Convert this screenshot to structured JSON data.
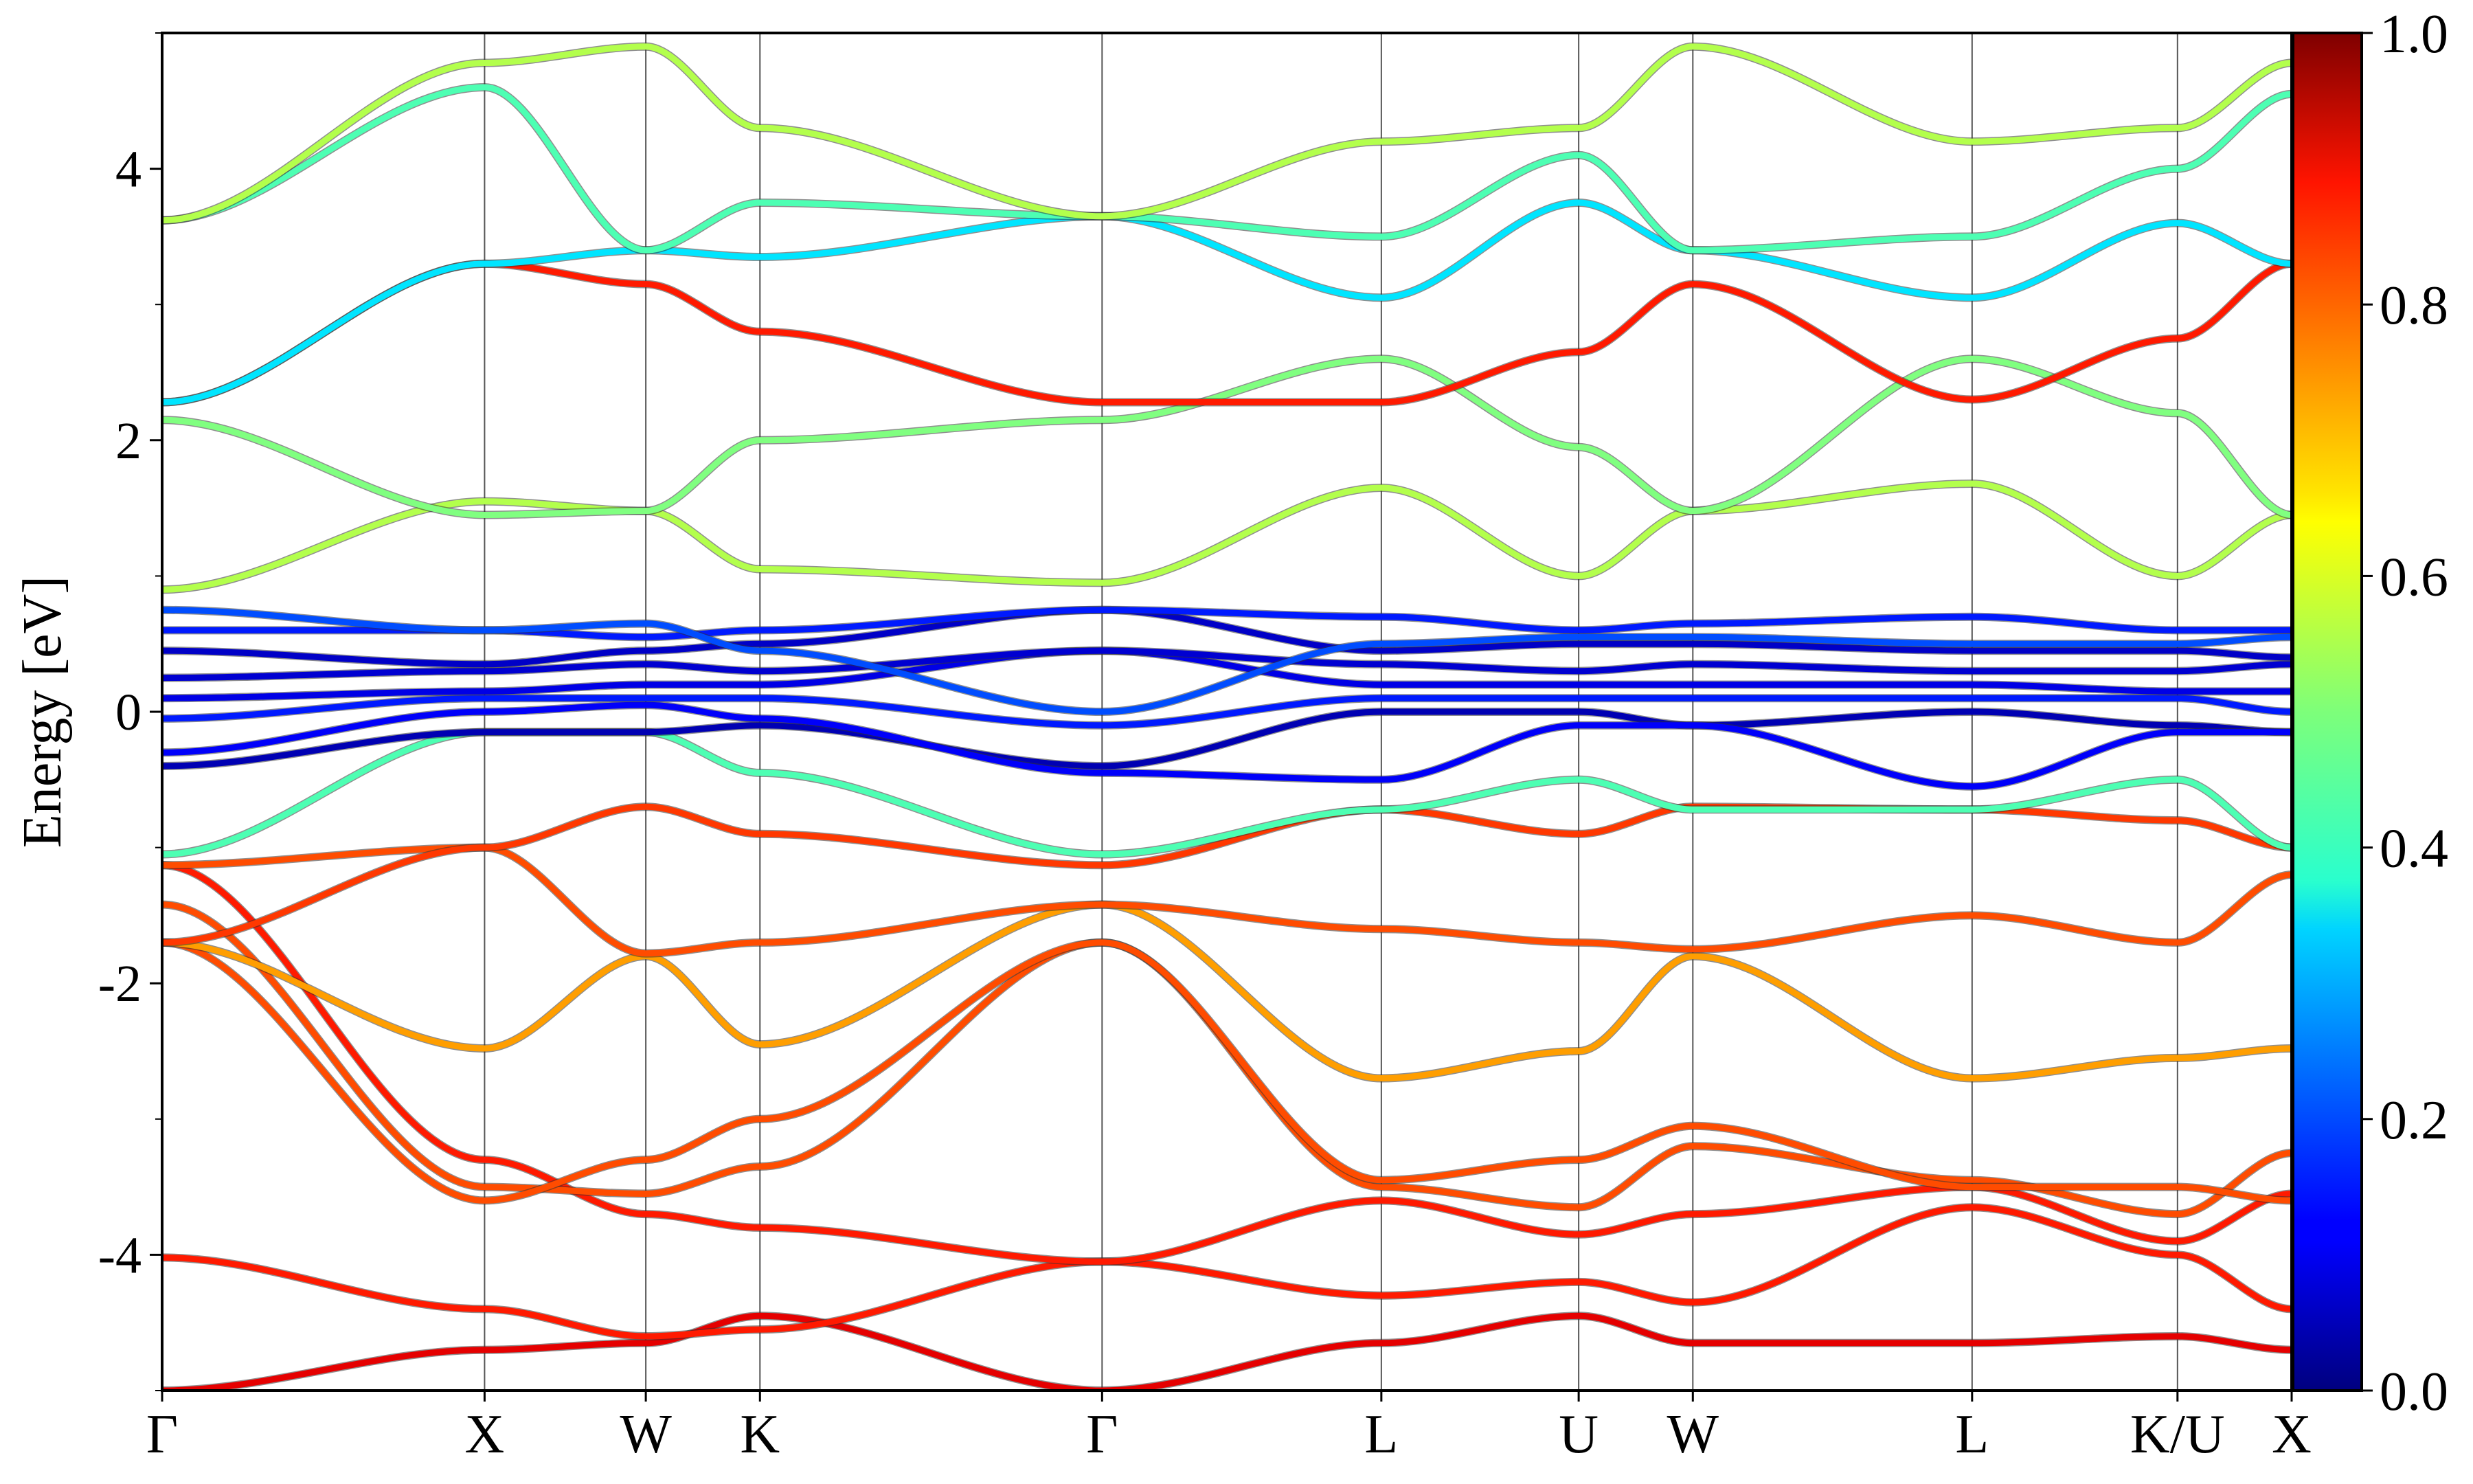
{
  "chart_data": {
    "type": "line",
    "subtype": "electronic band structure with projection-weight coloring",
    "title": "",
    "xlabel": "",
    "ylabel": "Energy [eV]",
    "ylim": [
      -5,
      5
    ],
    "yticks": [
      -4,
      -2,
      0,
      2,
      4
    ],
    "y_minor_ticks": [
      -5,
      -3,
      -1,
      1,
      3,
      5
    ],
    "kpath_labels": [
      "Γ",
      "X",
      "W",
      "K",
      "Γ",
      "L",
      "U",
      "W",
      "L",
      "K/U",
      "X"
    ],
    "kpath_positions": [
      0.0,
      1.0,
      1.5,
      1.854,
      2.915,
      3.781,
      4.393,
      4.747,
      5.613,
      6.25,
      6.604
    ],
    "grid": "vertical lines at high-symmetry points",
    "colorbar": {
      "colormap": "jet",
      "min": 0.0,
      "max": 1.0,
      "ticks": [
        "0.0",
        "0.2",
        "0.4",
        "0.6",
        "0.8",
        "1.0"
      ],
      "placement": "right"
    },
    "band_groups": [
      {
        "name": "",
        "energy_range": [
          -5.0,
          -1.1
        ],
        "typical_weight": 0.82
      },
      {
        "name": "",
        "energy_range": [
          -0.8,
          0.8
        ],
        "typical_weight": 0.12
      },
      {
        "name": "",
        "energy_range": [
          0.9,
          5.0
        ],
        "typical_weight": 0.45
      }
    ],
    "series": [
      {
        "x": [
          0.0,
          1.0,
          1.5,
          1.854,
          2.915,
          3.781,
          4.393,
          4.747,
          5.613,
          6.25,
          6.604
        ],
        "y": [
          -5.0,
          -4.7,
          -4.65,
          -4.45,
          -5.0,
          -4.65,
          -4.45,
          -4.65,
          -4.65,
          -4.6,
          -4.7
        ],
        "weight": 0.9
      },
      {
        "x": [
          0.0,
          1.0,
          1.5,
          1.854,
          2.915,
          3.781,
          4.393,
          4.747,
          5.613,
          6.25,
          6.604
        ],
        "y": [
          -4.02,
          -4.4,
          -4.6,
          -4.55,
          -4.05,
          -4.3,
          -4.2,
          -4.35,
          -3.65,
          -4.0,
          -4.4
        ],
        "weight": 0.85
      },
      {
        "x": [
          0.0,
          1.0,
          1.5,
          1.854,
          2.915,
          3.781,
          4.393,
          4.747,
          5.613,
          6.25,
          6.604
        ],
        "y": [
          -1.13,
          -3.3,
          -3.7,
          -3.8,
          -4.05,
          -3.6,
          -3.85,
          -3.7,
          -3.5,
          -3.9,
          -3.55
        ],
        "weight": 0.85
      },
      {
        "x": [
          0.0,
          1.0,
          1.5,
          1.854,
          2.915,
          3.781,
          4.393,
          4.747,
          5.613,
          6.25,
          6.604
        ],
        "y": [
          -1.42,
          -3.5,
          -3.55,
          -3.35,
          -1.7,
          -3.5,
          -3.65,
          -3.2,
          -3.45,
          -3.7,
          -3.25
        ],
        "weight": 0.8
      },
      {
        "x": [
          0.0,
          1.0,
          1.5,
          1.854,
          2.915,
          3.781,
          4.393,
          4.747,
          5.613,
          6.25,
          6.604
        ],
        "y": [
          -1.7,
          -3.6,
          -3.3,
          -3.0,
          -1.7,
          -3.45,
          -3.3,
          -3.05,
          -3.5,
          -3.5,
          -3.6
        ],
        "weight": 0.8
      },
      {
        "x": [
          0.0,
          1.0,
          1.5,
          1.854,
          2.915,
          3.781,
          4.393,
          4.747,
          5.613,
          6.25,
          6.604
        ],
        "y": [
          -1.7,
          -2.48,
          -1.8,
          -2.45,
          -1.42,
          -2.7,
          -2.5,
          -1.8,
          -2.7,
          -2.55,
          -2.48
        ],
        "weight": 0.72
      },
      {
        "x": [
          0.0,
          1.0,
          1.5,
          1.854,
          2.915,
          3.781,
          4.393,
          4.747,
          5.613,
          6.25,
          6.604
        ],
        "y": [
          -1.13,
          -1.0,
          -1.78,
          -1.7,
          -1.42,
          -1.6,
          -1.7,
          -1.75,
          -1.5,
          -1.7,
          -1.2
        ],
        "weight": 0.8
      },
      {
        "x": [
          0.0,
          1.0,
          1.5,
          1.854,
          2.915,
          3.781,
          4.393,
          4.747,
          5.613,
          6.25,
          6.604
        ],
        "y": [
          -1.7,
          -1.0,
          -0.7,
          -0.9,
          -1.13,
          -0.72,
          -0.9,
          -0.7,
          -0.72,
          -0.8,
          -1.0
        ],
        "weight": 0.82
      },
      {
        "x": [
          0.0,
          1.0,
          1.5,
          1.854,
          2.915,
          3.781,
          4.393,
          4.747,
          5.613,
          6.25,
          6.604
        ],
        "y": [
          -1.05,
          -0.15,
          -0.15,
          -0.45,
          -1.05,
          -0.72,
          -0.5,
          -0.72,
          -0.72,
          -0.5,
          -1.0
        ],
        "weight": 0.45
      },
      {
        "x": [
          0.0,
          1.0,
          1.5,
          1.854,
          2.915,
          3.781,
          4.393,
          4.747,
          5.613,
          6.25,
          6.604
        ],
        "y": [
          -0.4,
          -0.15,
          -0.15,
          -0.1,
          -0.4,
          0.0,
          0.0,
          -0.1,
          0.0,
          -0.1,
          -0.15
        ],
        "weight": 0.05
      },
      {
        "x": [
          0.0,
          1.0,
          1.5,
          1.854,
          2.915,
          3.781,
          4.393,
          4.747,
          5.613,
          6.25,
          6.604
        ],
        "y": [
          -0.3,
          0.0,
          0.05,
          -0.05,
          -0.45,
          -0.5,
          -0.1,
          -0.1,
          -0.55,
          -0.15,
          -0.15
        ],
        "weight": 0.12
      },
      {
        "x": [
          0.0,
          1.0,
          1.5,
          1.854,
          2.915,
          3.781,
          4.393,
          4.747,
          5.613,
          6.25,
          6.604
        ],
        "y": [
          -0.05,
          0.1,
          0.1,
          0.1,
          -0.1,
          0.1,
          0.1,
          0.1,
          0.1,
          0.1,
          0.0
        ],
        "weight": 0.15
      },
      {
        "x": [
          0.0,
          1.0,
          1.5,
          1.854,
          2.915,
          3.781,
          4.393,
          4.747,
          5.613,
          6.25,
          6.604
        ],
        "y": [
          0.1,
          0.15,
          0.2,
          0.2,
          0.45,
          0.2,
          0.2,
          0.2,
          0.2,
          0.15,
          0.15
        ],
        "weight": 0.1
      },
      {
        "x": [
          0.0,
          1.0,
          1.5,
          1.854,
          2.915,
          3.781,
          4.393,
          4.747,
          5.613,
          6.25,
          6.604
        ],
        "y": [
          0.25,
          0.3,
          0.35,
          0.3,
          0.45,
          0.35,
          0.3,
          0.35,
          0.3,
          0.3,
          0.35
        ],
        "weight": 0.08
      },
      {
        "x": [
          0.0,
          1.0,
          1.5,
          1.854,
          2.915,
          3.781,
          4.393,
          4.747,
          5.613,
          6.25,
          6.604
        ],
        "y": [
          0.45,
          0.35,
          0.45,
          0.5,
          0.75,
          0.45,
          0.5,
          0.5,
          0.45,
          0.45,
          0.4
        ],
        "weight": 0.07
      },
      {
        "x": [
          0.0,
          1.0,
          1.5,
          1.854,
          2.915,
          3.781,
          4.393,
          4.747,
          5.613,
          6.25,
          6.604
        ],
        "y": [
          0.6,
          0.6,
          0.55,
          0.6,
          0.75,
          0.7,
          0.6,
          0.65,
          0.7,
          0.6,
          0.6
        ],
        "weight": 0.15
      },
      {
        "x": [
          0.0,
          1.0,
          1.5,
          1.854,
          2.915,
          3.781,
          4.393,
          4.747,
          5.613,
          6.25,
          6.604
        ],
        "y": [
          0.75,
          0.6,
          0.65,
          0.45,
          0.0,
          0.5,
          0.55,
          0.55,
          0.5,
          0.5,
          0.55
        ],
        "weight": 0.2
      },
      {
        "x": [
          0.0,
          1.0,
          1.5,
          1.854,
          2.915,
          3.781,
          4.393,
          4.747,
          5.613,
          6.25,
          6.604
        ],
        "y": [
          0.9,
          1.55,
          1.48,
          1.05,
          0.95,
          1.65,
          1.0,
          1.48,
          1.68,
          1.0,
          1.45
        ],
        "weight": 0.55
      },
      {
        "x": [
          0.0,
          1.0,
          1.5,
          1.854,
          2.915,
          3.781,
          4.393,
          4.747,
          5.613,
          6.25,
          6.604
        ],
        "y": [
          2.15,
          1.45,
          1.48,
          2.0,
          2.15,
          2.6,
          1.95,
          1.48,
          2.6,
          2.2,
          1.45
        ],
        "weight": 0.5
      },
      {
        "x": [
          0.0,
          1.0,
          1.5,
          1.854,
          2.915,
          3.781,
          4.393,
          4.747,
          5.613,
          6.25,
          6.604
        ],
        "y": [
          2.28,
          3.3,
          3.15,
          2.8,
          2.28,
          2.28,
          2.65,
          3.15,
          2.3,
          2.75,
          3.3
        ],
        "weight": 0.85
      },
      {
        "x": [
          0.0,
          1.0,
          1.5,
          1.854,
          2.915,
          3.781,
          4.393,
          4.747,
          5.613,
          6.25,
          6.604
        ],
        "y": [
          2.28,
          3.3,
          3.4,
          3.35,
          3.65,
          3.05,
          3.75,
          3.4,
          3.05,
          3.6,
          3.3
        ],
        "weight": 0.35
      },
      {
        "x": [
          0.0,
          1.0,
          1.5,
          1.854,
          2.915,
          3.781,
          4.393,
          4.747,
          5.613,
          6.25,
          6.604
        ],
        "y": [
          3.62,
          4.6,
          3.4,
          3.75,
          3.65,
          3.5,
          4.1,
          3.4,
          3.5,
          4.0,
          4.55
        ],
        "weight": 0.45
      },
      {
        "x": [
          0.0,
          1.0,
          1.5,
          1.854,
          2.915,
          3.781,
          4.393,
          4.747,
          5.613,
          6.25,
          6.604
        ],
        "y": [
          3.62,
          4.78,
          4.9,
          4.3,
          3.65,
          4.2,
          4.3,
          4.9,
          4.2,
          4.3,
          4.78
        ],
        "weight": 0.55
      }
    ]
  }
}
